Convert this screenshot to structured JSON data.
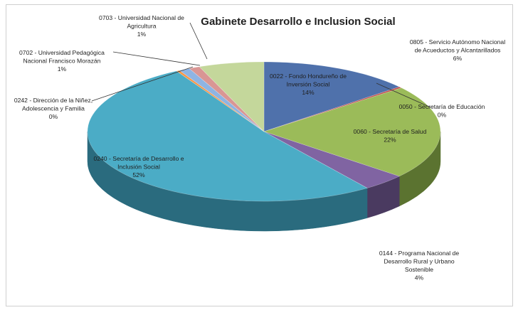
{
  "chart_data": {
    "type": "pie",
    "title": "Gabinete Desarrollo e Inclusion Social",
    "slices": [
      {
        "label": "0022 - Fondo Hondureño de Inversión Social",
        "value": 14,
        "percent_label": "14%",
        "color": "#4f71ab",
        "side_color": "#2e466f"
      },
      {
        "label": "0050 - Secretaría de Educación",
        "value": 0.3,
        "percent_label": "0%",
        "color": "#c0504d",
        "side_color": "#7a2f2d"
      },
      {
        "label": "0060 - Secretaría de Salud",
        "value": 22,
        "percent_label": "22%",
        "color": "#9bbb59",
        "side_color": "#5b7330"
      },
      {
        "label": "0144 - Programa Nacional de Desarrollo Rural y Urbano Sostenible",
        "value": 4,
        "percent_label": "4%",
        "color": "#8064a2",
        "side_color": "#4a3a60"
      },
      {
        "label": "0240 - Secretaría de Desarrollo e Inclusión Social",
        "value": 52,
        "percent_label": "52%",
        "color": "#4bacc6",
        "side_color": "#2a6b7e"
      },
      {
        "label": "0242 - Dirección de la Niñez, Adolescencia y Familia",
        "value": 0.3,
        "percent_label": "0%",
        "color": "#f79646",
        "side_color": "#9a5a26"
      },
      {
        "label": "0702 - Universidad Pedagógica Nacional Francisco Morazán",
        "value": 1,
        "percent_label": "1%",
        "color": "#8eb4e3",
        "side_color": "#5a7396"
      },
      {
        "label": "0703 - Universidad Nacional de Agricultura",
        "value": 1,
        "percent_label": "1%",
        "color": "#d99694",
        "side_color": "#8a5d5b"
      },
      {
        "label": "0805 - Servicio Autónomo Nacional de Acueductos y Alcantarillados",
        "value": 6,
        "percent_label": "6%",
        "color": "#c4d79b",
        "side_color": "#7d8b5f"
      }
    ]
  },
  "labels": {
    "s0": {
      "lines": [
        "0022 - Fondo Hondureño de",
        "Inversión Social",
        "14%"
      ]
    },
    "s1": {
      "lines": [
        "0050 - Secretaría de Educación",
        "0%"
      ]
    },
    "s2": {
      "lines": [
        "0060 - Secretaría de Salud",
        "22%"
      ]
    },
    "s3": {
      "lines": [
        "0144 - Programa Nacional de",
        "Desarrollo Rural y Urbano",
        "Sostenible",
        "4%"
      ]
    },
    "s4": {
      "lines": [
        "0240 - Secretaría de Desarrollo e",
        "Inclusión Social",
        "52%"
      ]
    },
    "s5": {
      "lines": [
        "0242 - Dirección de la Niñez,",
        "Adolescencia y Familia",
        "0%"
      ]
    },
    "s6": {
      "lines": [
        "0702 - Universidad Pedagógica",
        "Nacional Francisco Morazán",
        "1%"
      ]
    },
    "s7": {
      "lines": [
        "0703 - Universidad Nacional de",
        "Agricultura",
        "1%"
      ]
    },
    "s8": {
      "lines": [
        "0805 - Servicio Autónomo Nacional",
        "de Acueductos y Alcantarillados",
        "6%"
      ]
    }
  }
}
